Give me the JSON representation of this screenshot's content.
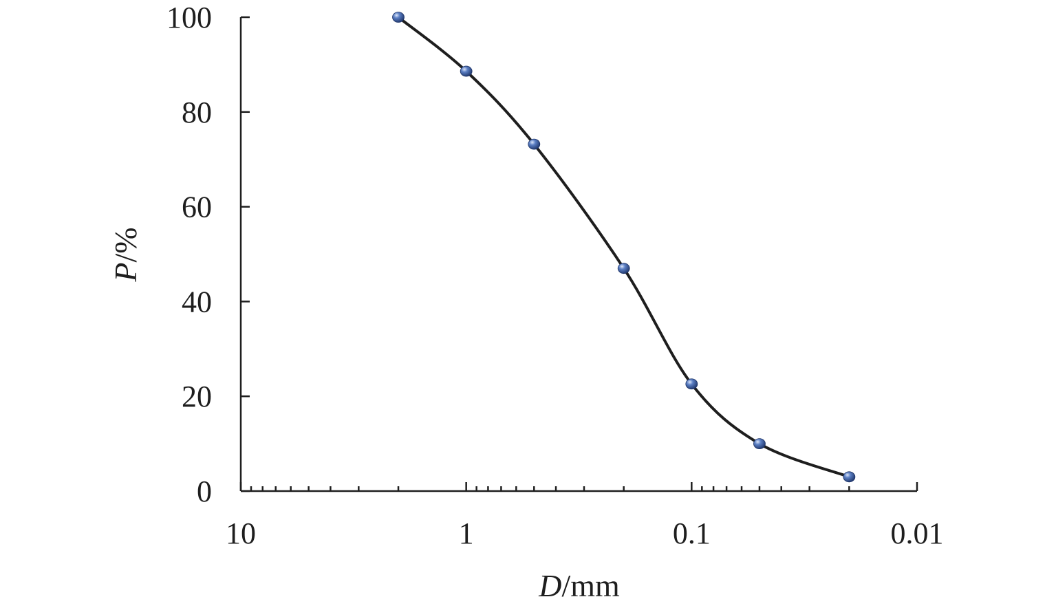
{
  "chart_data": {
    "type": "line",
    "title": "",
    "xlabel_var": "D",
    "xlabel_unit": "/mm",
    "ylabel_var": "P",
    "ylabel_unit": "/%",
    "x_scale": "log",
    "x_reversed": true,
    "xlim": [
      10,
      0.01
    ],
    "ylim": [
      0,
      100
    ],
    "x_ticks": [
      10,
      1,
      0.1,
      0.01
    ],
    "x_tick_labels": [
      "10",
      "1",
      "0.1",
      "0.01"
    ],
    "y_ticks": [
      0,
      20,
      40,
      60,
      80,
      100
    ],
    "y_tick_labels": [
      "0",
      "20",
      "40",
      "60",
      "80",
      "100"
    ],
    "grid": false,
    "series": [
      {
        "x": [
          2,
          1,
          0.5,
          0.2,
          0.1,
          0.05,
          0.02
        ],
        "y": [
          100,
          88.6,
          73.2,
          47,
          22.6,
          10,
          3
        ],
        "line_color": "#1e1e1e",
        "marker_color": "#2e4f8f",
        "marker": "sphere",
        "smooth": true
      }
    ]
  }
}
